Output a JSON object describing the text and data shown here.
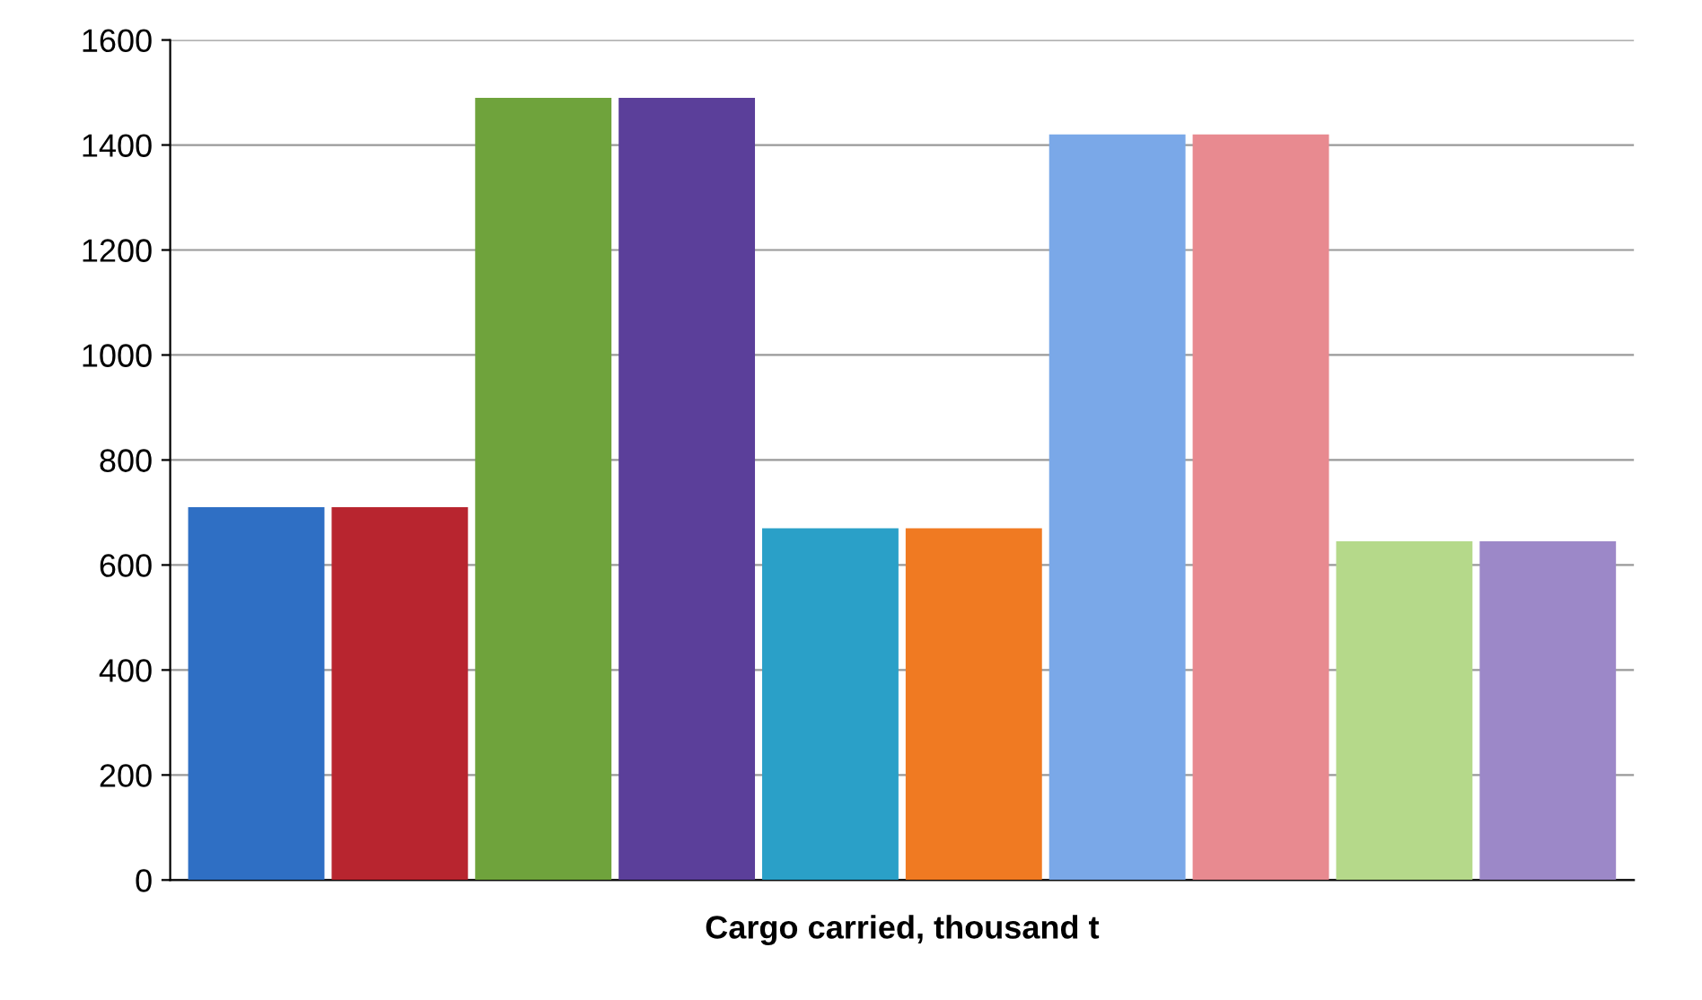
{
  "chart_data": {
    "type": "bar",
    "xlabel": "Cargo carried, thousand t",
    "categories": [
      null,
      null,
      null,
      null,
      null,
      null,
      null,
      null,
      null,
      null
    ],
    "values": [
      710,
      710,
      1490,
      1490,
      670,
      670,
      1420,
      1420,
      645,
      645
    ],
    "colors": [
      "#2f6fc4",
      "#b8252f",
      "#6fa33c",
      "#5b3f9a",
      "#2aa0c8",
      "#f07a22",
      "#7aa8e8",
      "#e88a90",
      "#b5d98a",
      "#9c88c8"
    ],
    "ylim": [
      0,
      1600
    ],
    "yticks": [
      0,
      200,
      400,
      600,
      800,
      1000,
      1200,
      1400,
      1600
    ],
    "grid": "y",
    "tick_labels": "y"
  }
}
